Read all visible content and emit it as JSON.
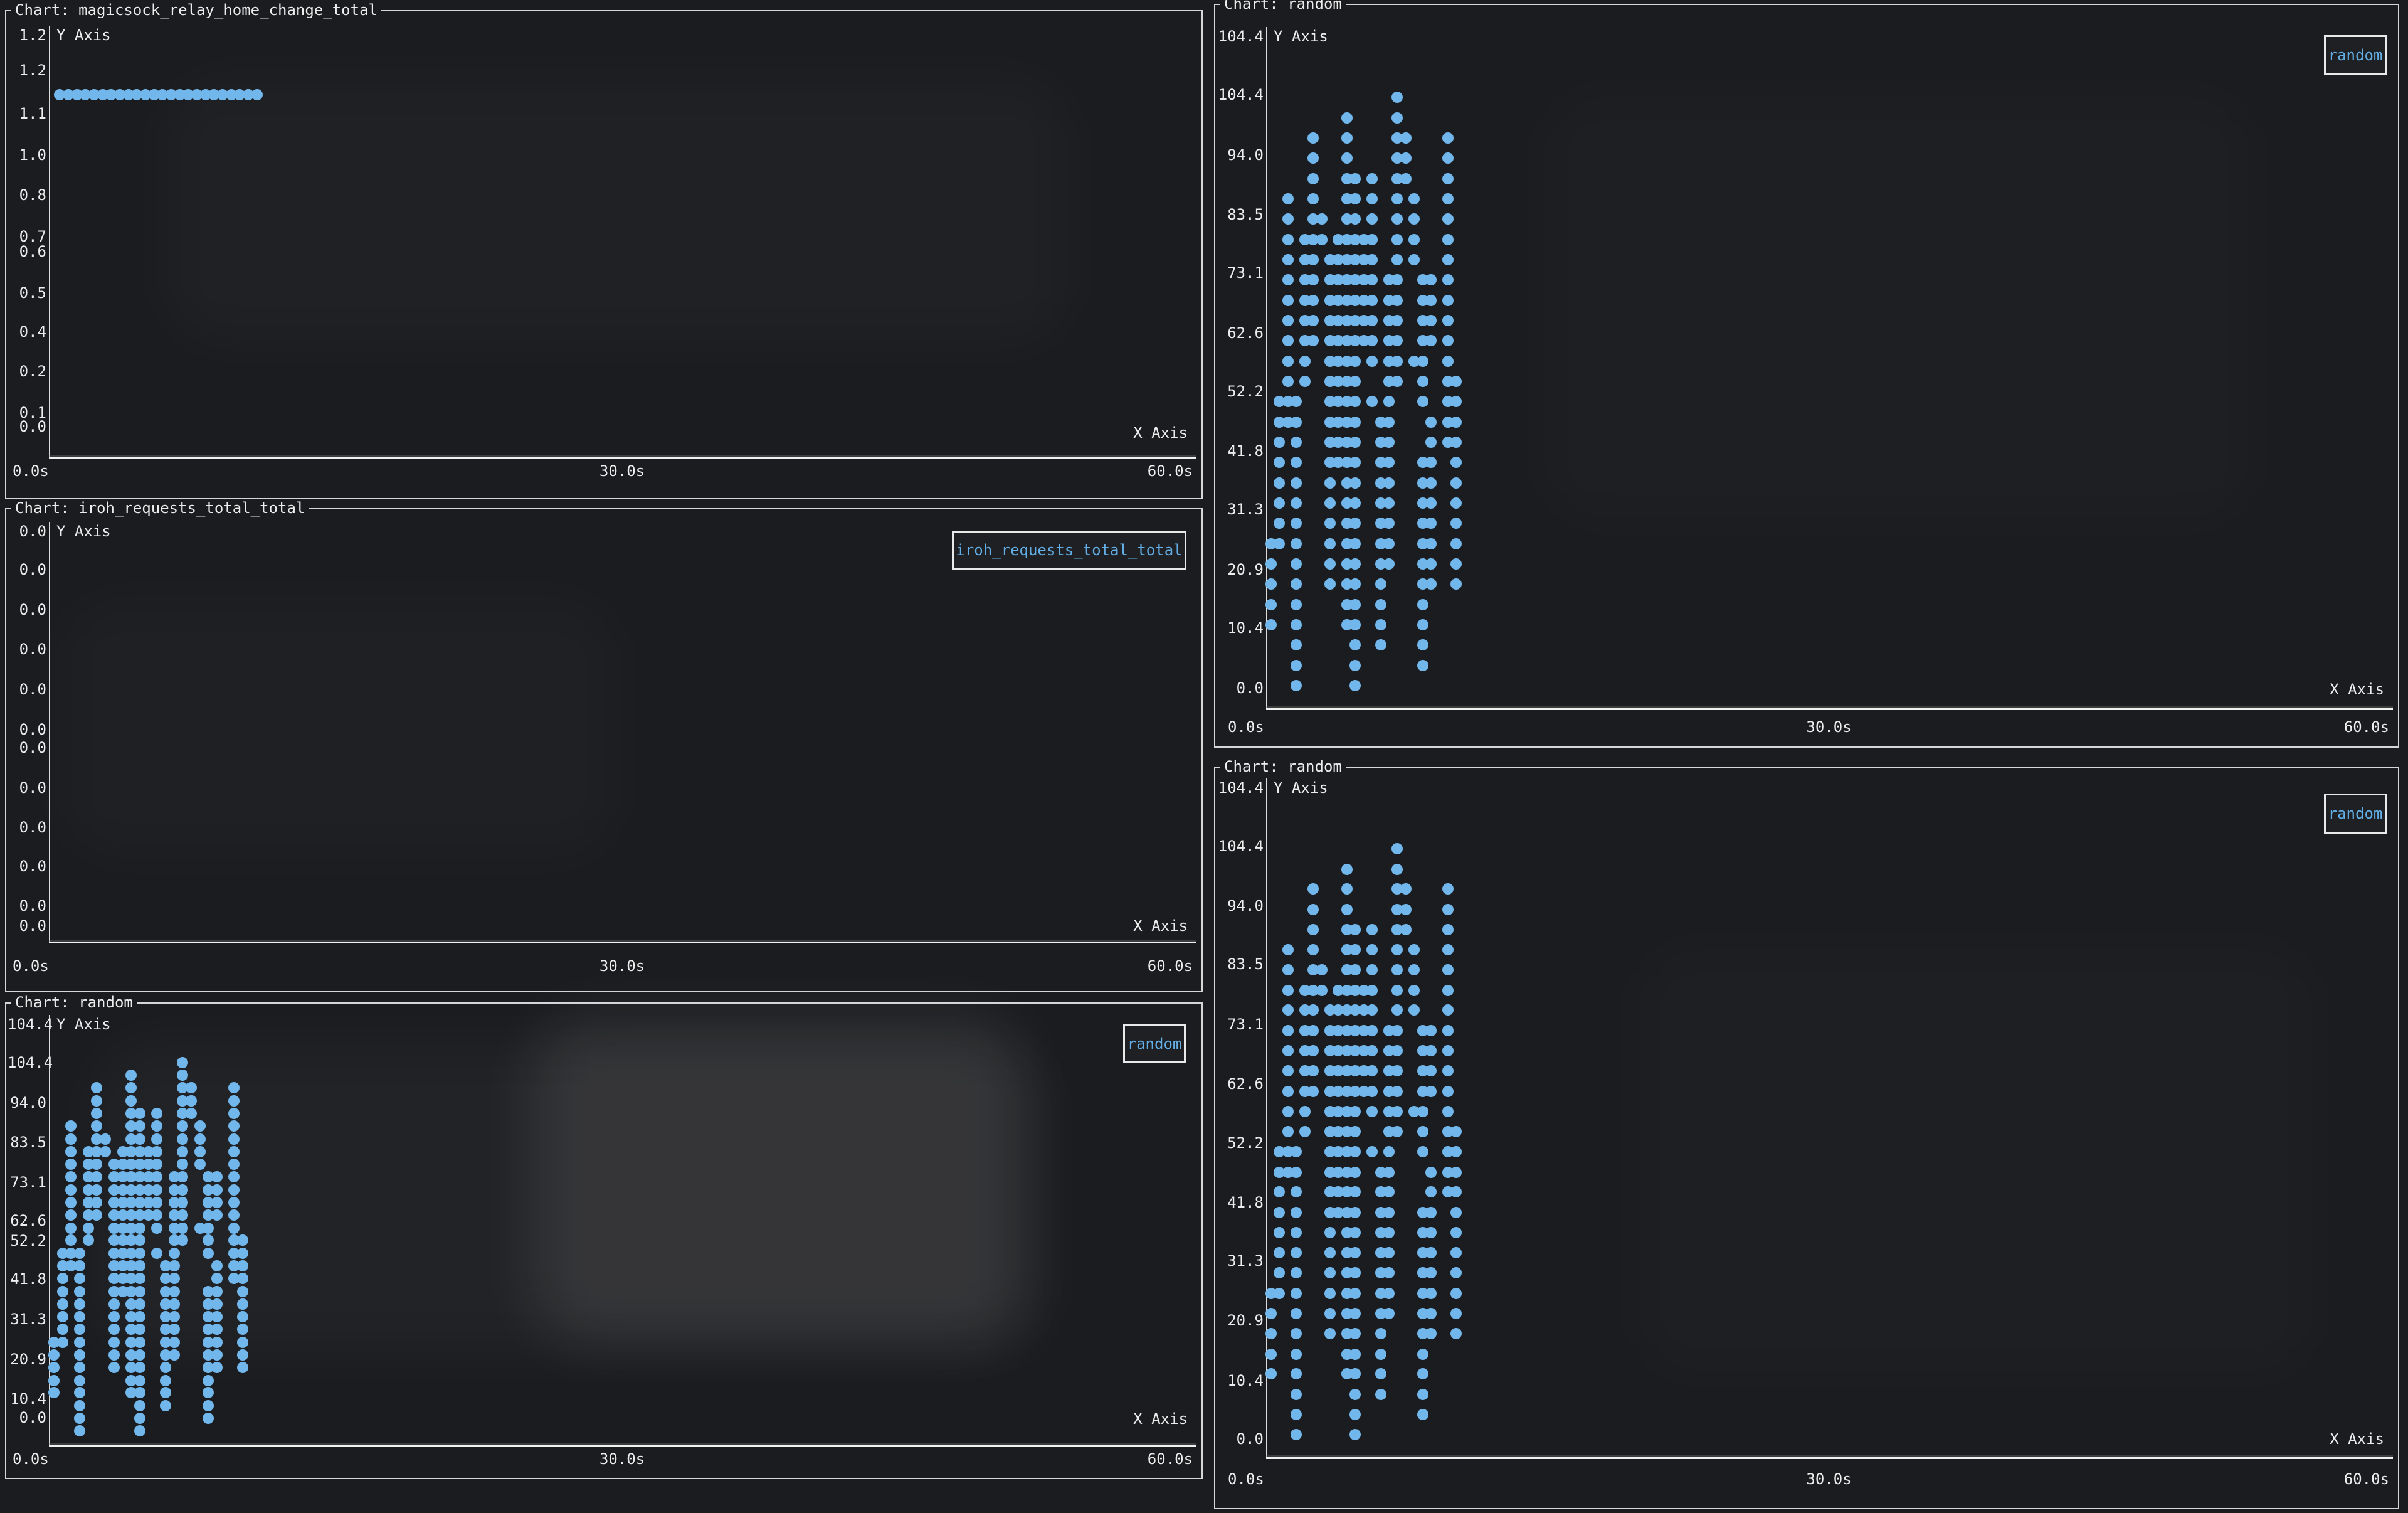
{
  "app": {
    "kind": "terminal metrics dashboard",
    "y_axis_title": "Y Axis",
    "x_axis_title": "X Axis"
  },
  "colors": {
    "background": "#1b1c1f",
    "panel_border": "#d6d6d6",
    "text": "#ececec",
    "dot": "#72b7ec",
    "legend_text": "#62aee6",
    "axis_line": "#f1f1f1"
  },
  "random_grid": {
    "comment": "shared scatter distribution for the three 'random' charts: col_times are seconds, row_values are y values, rows list column indices holding a dot at that row value",
    "col_times": [
      0.2,
      0.65,
      1.1,
      1.55,
      2.0,
      2.45,
      2.9,
      3.35,
      3.8,
      4.25,
      4.7,
      5.15,
      5.6,
      6.05,
      6.5,
      6.95,
      7.4,
      7.85,
      8.3,
      8.75,
      9.2,
      9.65,
      10.1
    ],
    "row_values": [
      104.4,
      100.9,
      97.5,
      94.0,
      90.5,
      87.1,
      83.6,
      80.1,
      76.7,
      73.2,
      69.7,
      66.3,
      62.8,
      59.3,
      55.9,
      52.4,
      48.9,
      45.5,
      42.0,
      38.5,
      35.1,
      31.6,
      28.1,
      24.7,
      21.2,
      17.7,
      14.3,
      10.8,
      7.3,
      3.9
    ],
    "rows": [
      [
        15
      ],
      [
        9,
        15
      ],
      [
        5,
        9,
        15,
        16,
        21
      ],
      [
        5,
        9,
        15,
        16,
        21
      ],
      [
        5,
        9,
        10,
        12,
        15,
        16,
        21
      ],
      [
        2,
        5,
        9,
        10,
        12,
        15,
        17,
        21
      ],
      [
        2,
        5,
        6,
        9,
        10,
        12,
        15,
        17,
        21
      ],
      [
        2,
        4,
        5,
        6,
        8,
        9,
        10,
        11,
        12,
        15,
        17,
        21
      ],
      [
        2,
        4,
        5,
        7,
        8,
        9,
        10,
        11,
        12,
        15,
        17,
        21
      ],
      [
        2,
        4,
        5,
        7,
        8,
        9,
        10,
        11,
        12,
        14,
        15,
        18,
        19,
        21
      ],
      [
        2,
        4,
        5,
        7,
        8,
        9,
        10,
        11,
        12,
        14,
        15,
        18,
        19,
        21
      ],
      [
        2,
        4,
        5,
        7,
        8,
        9,
        10,
        11,
        12,
        14,
        15,
        18,
        19,
        21
      ],
      [
        2,
        4,
        5,
        7,
        8,
        9,
        10,
        11,
        12,
        14,
        15,
        18,
        19,
        21
      ],
      [
        2,
        4,
        7,
        8,
        9,
        10,
        12,
        14,
        15,
        17,
        18,
        21
      ],
      [
        2,
        4,
        7,
        8,
        9,
        10,
        14,
        15,
        18,
        21,
        22
      ],
      [
        1,
        2,
        3,
        7,
        8,
        9,
        10,
        12,
        14,
        18,
        21,
        22
      ],
      [
        1,
        2,
        3,
        7,
        8,
        9,
        10,
        13,
        14,
        19,
        21,
        22
      ],
      [
        1,
        3,
        7,
        8,
        9,
        10,
        13,
        14,
        19,
        21,
        22
      ],
      [
        1,
        3,
        7,
        8,
        9,
        10,
        13,
        14,
        18,
        19,
        22
      ],
      [
        1,
        3,
        7,
        9,
        10,
        13,
        14,
        18,
        19,
        22
      ],
      [
        1,
        3,
        7,
        9,
        10,
        13,
        14,
        18,
        19,
        22
      ],
      [
        1,
        3,
        7,
        9,
        10,
        13,
        14,
        18,
        19,
        22
      ],
      [
        0,
        1,
        3,
        7,
        9,
        10,
        13,
        14,
        18,
        19,
        22
      ],
      [
        0,
        3,
        7,
        9,
        10,
        13,
        14,
        18,
        19,
        22
      ],
      [
        0,
        3,
        7,
        9,
        10,
        13,
        18,
        19,
        22
      ],
      [
        0,
        3,
        9,
        10,
        13,
        18
      ],
      [
        0,
        3,
        9,
        10,
        13,
        18
      ],
      [
        3,
        10,
        13,
        18
      ],
      [
        3,
        10,
        18
      ],
      [
        3,
        10
      ]
    ]
  },
  "chart_data": [
    {
      "type": "scatter",
      "title": "Chart: magicsock_relay_home_change_total",
      "legend": null,
      "xlabel": "X Axis",
      "ylabel": "Y Axis",
      "x_range_s": [
        0,
        60
      ],
      "ylim": [
        0,
        1.34
      ],
      "y_ticks": [
        "1.2",
        "1.2",
        "1.1",
        "1.0",
        "0.8",
        "0.7",
        "0.6",
        "0.5",
        "0.4",
        "0.2",
        "0.1",
        "0.0"
      ],
      "x_ticks": [
        "0.0s",
        "30.0s",
        "60.0s"
      ],
      "series": {
        "name": "magicsock_relay_home_change_total",
        "y_value": 1.15,
        "x_values": [
          0.5,
          0.95,
          1.4,
          1.85,
          2.3,
          2.75,
          3.2,
          3.65,
          4.1,
          4.55,
          5.0,
          5.45,
          5.9,
          6.35,
          6.8,
          7.25,
          7.7,
          8.15,
          8.6,
          9.05,
          9.5,
          9.95,
          10.4,
          10.85
        ]
      }
    },
    {
      "type": "scatter",
      "title": "Chart: iroh_requests_total_total",
      "legend": "iroh_requests_total_total",
      "xlabel": "X Axis",
      "ylabel": "Y Axis",
      "x_range_s": [
        0,
        60
      ],
      "ylim": [
        0,
        1
      ],
      "y_ticks": [
        "0.0",
        "0.0",
        "0.0",
        "0.0",
        "0.0",
        "0.0",
        "0.0",
        "0.0",
        "0.0",
        "0.0",
        "0.0",
        "0.0"
      ],
      "x_ticks": [
        "0.0s",
        "30.0s",
        "60.0s"
      ],
      "series": {
        "name": "iroh_requests_total_total",
        "points": []
      }
    },
    {
      "type": "scatter",
      "title": "Chart: random",
      "legend": "random",
      "xlabel": "X Axis",
      "ylabel": "Y Axis",
      "x_range_s": [
        0,
        60
      ],
      "ylim": [
        0,
        114.84
      ],
      "y_ticks": [
        "104.4",
        "104.4",
        "94.0",
        "83.5",
        "73.1",
        "62.6",
        "52.2",
        "41.8",
        "31.3",
        "20.9",
        "10.4",
        "0.0"
      ],
      "x_ticks": [
        "0.0s",
        "30.0s",
        "60.0s"
      ],
      "series": {
        "name": "random",
        "points_ref": "random_grid"
      }
    },
    {
      "type": "scatter",
      "title": "Chart: random",
      "legend": "random",
      "xlabel": "X Axis",
      "ylabel": "Y Axis",
      "x_range_s": [
        0,
        60
      ],
      "ylim": [
        0,
        114.84
      ],
      "y_ticks": [
        "104.4",
        "104.4",
        "94.0",
        "83.5",
        "73.1",
        "62.6",
        "52.2",
        "41.8",
        "31.3",
        "20.9",
        "10.4",
        "0.0"
      ],
      "x_ticks": [
        "0.0s",
        "30.0s",
        "60.0s"
      ],
      "series": {
        "name": "random",
        "points_ref": "random_grid"
      }
    },
    {
      "type": "scatter",
      "title": "Chart: random",
      "legend": "random",
      "xlabel": "X Axis",
      "ylabel": "Y Axis",
      "x_range_s": [
        0,
        60
      ],
      "ylim": [
        0,
        114.84
      ],
      "y_ticks": [
        "104.4",
        "104.4",
        "94.0",
        "83.5",
        "73.1",
        "62.6",
        "52.2",
        "41.8",
        "31.3",
        "20.9",
        "10.4",
        "0.0"
      ],
      "x_ticks": [
        "0.0s",
        "30.0s",
        "60.0s"
      ],
      "series": {
        "name": "random",
        "points_ref": "random_grid"
      }
    }
  ]
}
